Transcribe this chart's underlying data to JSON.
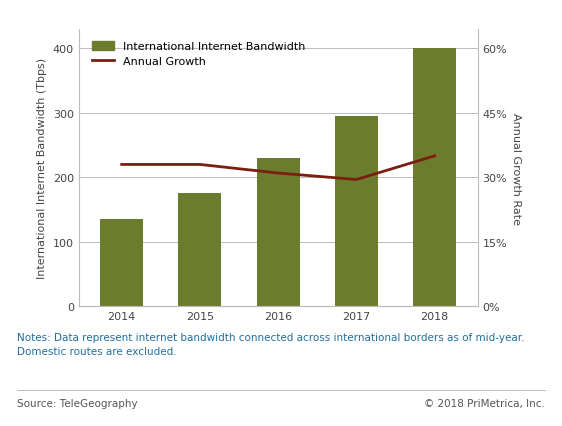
{
  "years": [
    2014,
    2015,
    2016,
    2017,
    2018
  ],
  "bandwidth": [
    135,
    175,
    230,
    295,
    400
  ],
  "growth_rate": [
    0.33,
    0.33,
    0.31,
    0.295,
    0.35
  ],
  "bar_color": "#6b7c2d",
  "line_color": "#7a1e10",
  "bar_legend": "International Internet Bandwidth",
  "line_legend": "Annual Growth",
  "ylabel_left": "International Internet Bandwidth (Tbps)",
  "ylabel_right": "Annual Growth Rate",
  "ylim_left": [
    0,
    430
  ],
  "ylim_right": [
    0,
    0.645
  ],
  "yticks_left": [
    0,
    100,
    200,
    300,
    400
  ],
  "yticks_right": [
    0.0,
    0.15,
    0.3,
    0.45,
    0.6
  ],
  "ytick_labels_right": [
    "0%",
    "15%",
    "30%",
    "45%",
    "60%"
  ],
  "notes_text": "Notes: Data represent internet bandwidth connected across international borders as of mid-year.\nDomestic routes are excluded.",
  "source_left": "Source: TeleGeography",
  "source_right": "© 2018 PriMetrica, Inc.",
  "notes_color": "#1f6fa3",
  "source_color": "#555555",
  "background_color": "#ffffff",
  "gridline_color": "#bbbbbb",
  "label_fontsize": 8,
  "tick_fontsize": 8,
  "notes_fontsize": 7.5,
  "source_fontsize": 7.5
}
